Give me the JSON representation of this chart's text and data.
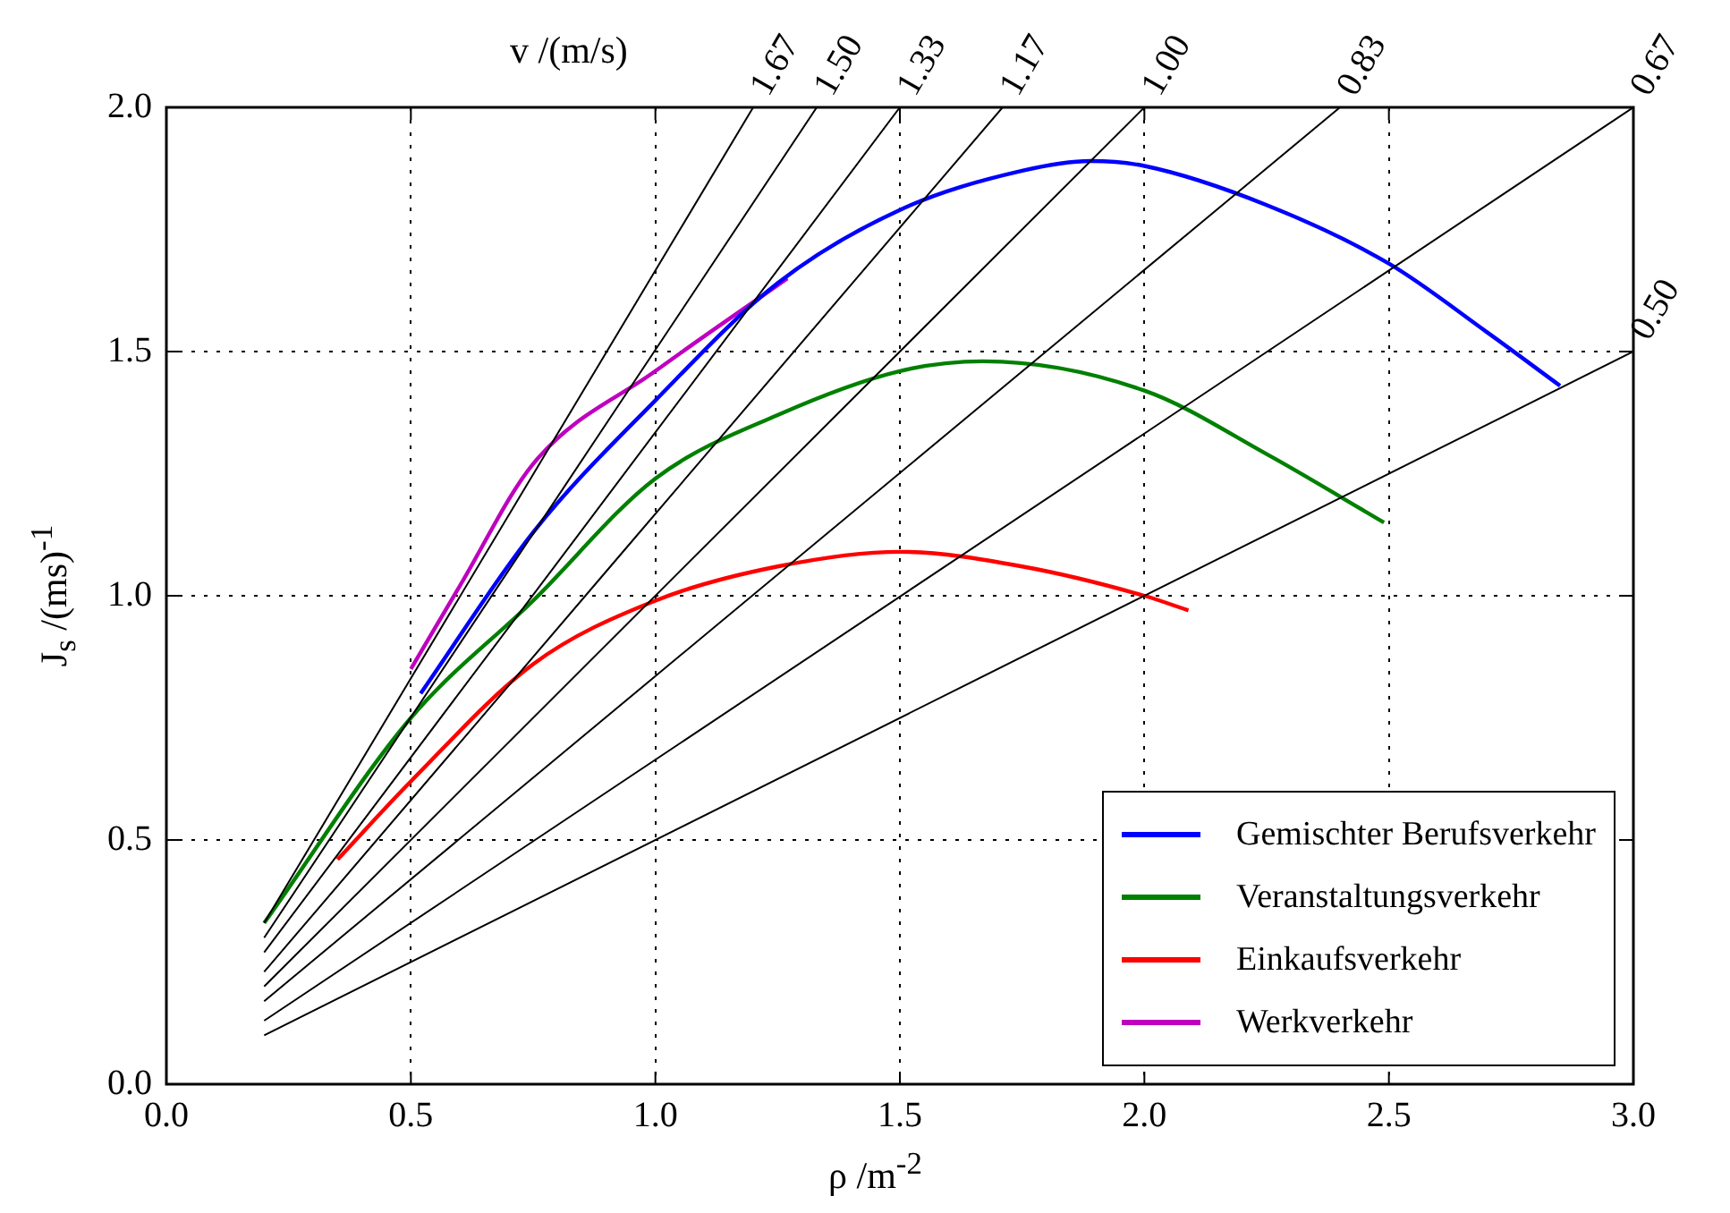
{
  "chart_data": {
    "type": "line",
    "xlabel": "ρ  /m$^{-2}$",
    "ylabel": "J$_{s}$  /(ms)$^{-1}$",
    "xlim": [
      0,
      3
    ],
    "ylim": [
      0,
      2
    ],
    "xticks": [
      {
        "value": 0,
        "label": "0.0"
      },
      {
        "value": 0.5,
        "label": "0.5"
      },
      {
        "value": 1,
        "label": "1.0"
      },
      {
        "value": 1.5,
        "label": "1.5"
      },
      {
        "value": 2,
        "label": "2.0"
      },
      {
        "value": 2.5,
        "label": "2.5"
      },
      {
        "value": 3,
        "label": "3.0"
      }
    ],
    "yticks": [
      {
        "value": 0,
        "label": "0.0"
      },
      {
        "value": 0.5,
        "label": "0.5"
      },
      {
        "value": 1,
        "label": "1.0"
      },
      {
        "value": 1.5,
        "label": "1.5"
      },
      {
        "value": 2,
        "label": "2.0"
      }
    ],
    "grid": true,
    "legend": "bottom right",
    "marker": "none",
    "line_style": "solid",
    "series": [
      {
        "color": "#000000",
        "x": [
          0.2,
          1.2
        ],
        "values": [
          0.33,
          2.0
        ]
      },
      {
        "color": "#000000",
        "x": [
          0.2,
          1.33
        ],
        "values": [
          0.3,
          2.0
        ]
      },
      {
        "color": "#000000",
        "x": [
          0.2,
          1.5
        ],
        "values": [
          0.27,
          2.0
        ]
      },
      {
        "color": "#000000",
        "x": [
          0.2,
          1.71
        ],
        "values": [
          0.23,
          2.0
        ]
      },
      {
        "color": "#000000",
        "x": [
          0.2,
          2.0
        ],
        "values": [
          0.2,
          2.0
        ]
      },
      {
        "color": "#000000",
        "x": [
          0.2,
          2.4
        ],
        "values": [
          0.17,
          2.0
        ]
      },
      {
        "color": "#000000",
        "x": [
          0.2,
          3.0
        ],
        "values": [
          0.13,
          2.0
        ]
      },
      {
        "color": "#000000",
        "x": [
          0.2,
          3.0
        ],
        "values": [
          0.1,
          1.5
        ]
      },
      {
        "name": "Gemischter Berufsverkehr",
        "color": "#0000ff",
        "x": [
          0.52,
          0.75,
          1.0,
          1.25,
          1.5,
          1.75,
          1.89,
          2.0,
          2.25,
          2.5,
          2.7,
          2.85
        ],
        "values": [
          0.8,
          1.13,
          1.4,
          1.64,
          1.79,
          1.87,
          1.89,
          1.88,
          1.8,
          1.68,
          1.54,
          1.43
        ]
      },
      {
        "name": "Veranstaltungsverkehr",
        "color": "#008000",
        "x": [
          0.2,
          0.5,
          0.75,
          1.0,
          1.25,
          1.5,
          1.67,
          2.0,
          2.25,
          2.49
        ],
        "values": [
          0.33,
          0.75,
          0.99,
          1.24,
          1.37,
          1.46,
          1.48,
          1.42,
          1.29,
          1.15
        ]
      },
      {
        "name": "Einkaufsverkehr",
        "color": "#ff0000",
        "x": [
          0.35,
          0.5,
          0.75,
          1.0,
          1.25,
          1.5,
          1.75,
          2.0,
          2.09
        ],
        "values": [
          0.46,
          0.62,
          0.86,
          0.99,
          1.06,
          1.09,
          1.06,
          1.0,
          0.97
        ]
      },
      {
        "name": "Werkverkehr",
        "color": "#bf00bf",
        "x": [
          0.5,
          0.6,
          0.75,
          1.0,
          1.27
        ],
        "values": [
          0.85,
          1.02,
          1.27,
          1.46,
          1.65
        ]
      }
    ],
    "annotations": [
      "v  /(m/s)",
      {
        "text": "1.67",
        "x": 1.2,
        "y": 2.0
      },
      {
        "text": "1.50",
        "x": 1.33,
        "y": 2.0
      },
      {
        "text": "1.33",
        "x": 1.5,
        "y": 2.0
      },
      {
        "text": "1.17",
        "x": 1.71,
        "y": 2.0
      },
      {
        "text": "1.00",
        "x": 2.0,
        "y": 2.0
      },
      {
        "text": "0.83",
        "x": 2.4,
        "y": 2.0
      },
      {
        "text": "0.67",
        "x": 3.0,
        "y": 2.0
      },
      {
        "text": "0.50",
        "x": 3.0,
        "y": 1.5
      }
    ]
  }
}
